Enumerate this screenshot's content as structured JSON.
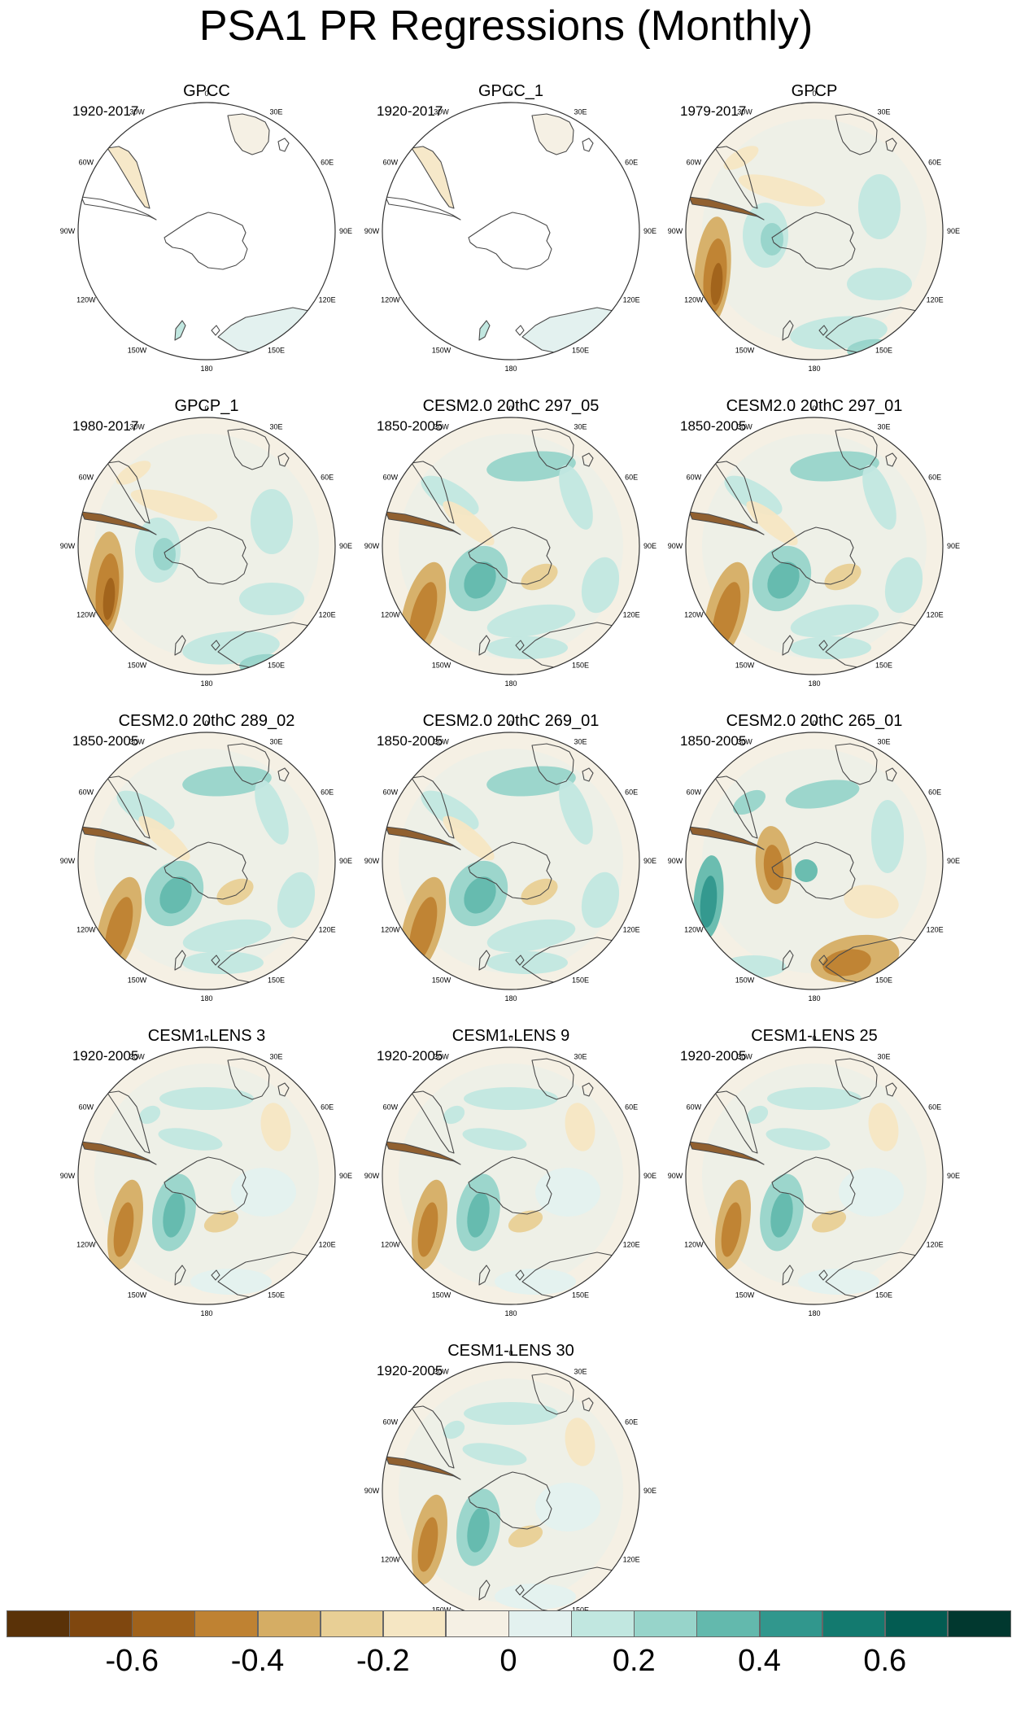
{
  "title": "PSA1 PR Regressions (Monthly)",
  "panels": [
    {
      "title": "GPCC",
      "years": "1920-2017",
      "kind": "land"
    },
    {
      "title": "GPCC_1",
      "years": "1920-2017",
      "kind": "land"
    },
    {
      "title": "GPCP",
      "years": "1979-2017",
      "kind": "obs"
    },
    {
      "title": "GPCP_1",
      "years": "1980-2017",
      "kind": "obs"
    },
    {
      "title": "CESM2.0 20thC 297_05",
      "years": "1850-2005",
      "kind": "model"
    },
    {
      "title": "CESM2.0 20thC 297_01",
      "years": "1850-2005",
      "kind": "model"
    },
    {
      "title": "CESM2.0 20thC 289_02",
      "years": "1850-2005",
      "kind": "model"
    },
    {
      "title": "CESM2.0 20thC 269_01",
      "years": "1850-2005",
      "kind": "model"
    },
    {
      "title": "CESM2.0 20thC 265_01",
      "years": "1850-2005",
      "kind": "model265"
    },
    {
      "title": "CESM1-LENS 3",
      "years": "1920-2005",
      "kind": "lens"
    },
    {
      "title": "CESM1-LENS 9",
      "years": "1920-2005",
      "kind": "lens"
    },
    {
      "title": "CESM1-LENS 25",
      "years": "1920-2005",
      "kind": "lens"
    },
    {
      "title": "CESM1-LENS 30",
      "years": "1920-2005",
      "kind": "lens"
    }
  ],
  "longitude_labels": [
    "0",
    "30E",
    "60E",
    "90E",
    "120E",
    "150E",
    "180",
    "150W",
    "120W",
    "90W",
    "60W",
    "30W"
  ],
  "colorbar": {
    "colors": [
      "#5a3208",
      "#7f470f",
      "#a0621b",
      "#bf8232",
      "#d5ad64",
      "#e8cf95",
      "#f5e6c3",
      "#f5f0e4",
      "#e3f1ef",
      "#c1e7e0",
      "#97d4ca",
      "#63b9ad",
      "#31978d",
      "#137a6f",
      "#035c52",
      "#01382f"
    ],
    "tick_labels": [
      "-0.6",
      "-0.4",
      "-0.2",
      "0",
      "0.2",
      "0.4",
      "0.6"
    ]
  }
}
